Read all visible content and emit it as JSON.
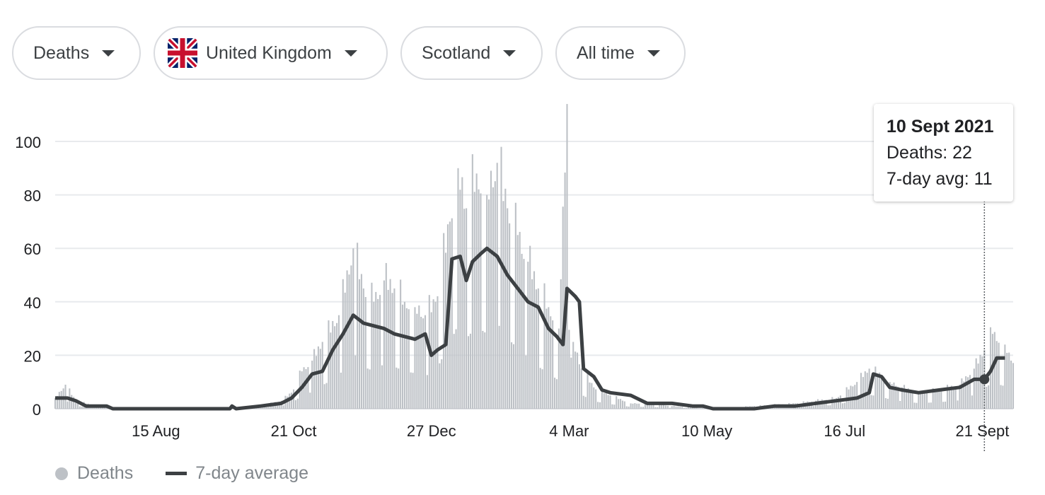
{
  "filters": {
    "metric": "Deaths",
    "country": "United Kingdom",
    "region": "Scotland",
    "range": "All time"
  },
  "tooltip": {
    "date": "10 Sept 2021",
    "deaths": "Deaths: 22",
    "avg": "7-day avg: 11"
  },
  "legend": {
    "deaths": "Deaths",
    "avg": "7-day average"
  },
  "colors": {
    "bars": "#bdc1c6",
    "line": "#3c4043",
    "grid": "#e8eaed",
    "axis_text": "#202124"
  },
  "chart_data": {
    "type": "bar",
    "title": "",
    "xlabel": "",
    "ylabel": "",
    "ylim": [
      0,
      114
    ],
    "yticks": [
      0,
      20,
      40,
      60,
      80,
      100
    ],
    "xtick_labels": [
      {
        "label": "15 Aug",
        "day": 49
      },
      {
        "label": "21 Oct",
        "day": 116
      },
      {
        "label": "27 Dec",
        "day": 183
      },
      {
        "label": "4 Mar",
        "day": 250
      },
      {
        "label": "10 May",
        "day": 317
      },
      {
        "label": "16 Jul",
        "day": 384
      },
      {
        "label": "21 Sept",
        "day": 451
      }
    ],
    "total_days": 466,
    "highlight_day": 452,
    "series": [
      {
        "name": "Deaths",
        "kind": "bar",
        "key_points": [
          [
            0,
            4
          ],
          [
            5,
            9
          ],
          [
            10,
            3
          ],
          [
            20,
            1
          ],
          [
            30,
            0
          ],
          [
            90,
            0
          ],
          [
            100,
            1
          ],
          [
            110,
            3
          ],
          [
            115,
            6
          ],
          [
            120,
            14
          ],
          [
            125,
            18
          ],
          [
            130,
            25
          ],
          [
            138,
            35
          ],
          [
            145,
            60
          ],
          [
            150,
            45
          ],
          [
            155,
            40
          ],
          [
            160,
            48
          ],
          [
            165,
            45
          ],
          [
            170,
            40
          ],
          [
            175,
            38
          ],
          [
            180,
            35
          ],
          [
            185,
            40
          ],
          [
            192,
            70
          ],
          [
            196,
            90
          ],
          [
            200,
            75
          ],
          [
            205,
            88
          ],
          [
            210,
            80
          ],
          [
            215,
            92
          ],
          [
            220,
            75
          ],
          [
            225,
            65
          ],
          [
            230,
            55
          ],
          [
            235,
            45
          ],
          [
            240,
            38
          ],
          [
            245,
            30
          ],
          [
            249,
            114
          ],
          [
            252,
            25
          ],
          [
            256,
            15
          ],
          [
            262,
            8
          ],
          [
            270,
            5
          ],
          [
            280,
            2
          ],
          [
            290,
            2
          ],
          [
            300,
            1
          ],
          [
            320,
            0
          ],
          [
            340,
            1
          ],
          [
            360,
            2
          ],
          [
            370,
            3
          ],
          [
            380,
            4
          ],
          [
            390,
            10
          ],
          [
            396,
            15
          ],
          [
            403,
            12
          ],
          [
            406,
            10
          ],
          [
            412,
            8
          ],
          [
            420,
            6
          ],
          [
            430,
            7
          ],
          [
            440,
            9
          ],
          [
            447,
            15
          ],
          [
            452,
            22
          ],
          [
            456,
            28
          ],
          [
            462,
            24
          ],
          [
            465,
            18
          ]
        ]
      },
      {
        "name": "7-day average",
        "kind": "line",
        "points": [
          [
            0,
            4
          ],
          [
            3,
            4
          ],
          [
            6,
            4
          ],
          [
            10,
            3
          ],
          [
            15,
            1
          ],
          [
            25,
            1
          ],
          [
            28,
            0
          ],
          [
            85,
            0
          ],
          [
            86,
            1
          ],
          [
            88,
            0
          ],
          [
            100,
            1
          ],
          [
            110,
            2
          ],
          [
            115,
            4
          ],
          [
            120,
            8
          ],
          [
            125,
            13
          ],
          [
            130,
            14
          ],
          [
            135,
            22
          ],
          [
            140,
            28
          ],
          [
            145,
            35
          ],
          [
            150,
            32
          ],
          [
            155,
            31
          ],
          [
            160,
            30
          ],
          [
            165,
            28
          ],
          [
            170,
            27
          ],
          [
            175,
            26
          ],
          [
            180,
            28
          ],
          [
            183,
            20
          ],
          [
            186,
            22
          ],
          [
            190,
            24
          ],
          [
            193,
            56
          ],
          [
            197,
            57
          ],
          [
            200,
            48
          ],
          [
            203,
            55
          ],
          [
            207,
            58
          ],
          [
            210,
            60
          ],
          [
            215,
            57
          ],
          [
            220,
            50
          ],
          [
            225,
            45
          ],
          [
            230,
            40
          ],
          [
            235,
            38
          ],
          [
            240,
            30
          ],
          [
            244,
            27
          ],
          [
            247,
            24
          ],
          [
            249,
            45
          ],
          [
            253,
            42
          ],
          [
            255,
            40
          ],
          [
            257,
            15
          ],
          [
            262,
            12
          ],
          [
            266,
            7
          ],
          [
            270,
            6
          ],
          [
            280,
            5
          ],
          [
            288,
            2
          ],
          [
            300,
            2
          ],
          [
            310,
            1
          ],
          [
            315,
            1
          ],
          [
            320,
            0
          ],
          [
            340,
            0
          ],
          [
            350,
            1
          ],
          [
            360,
            1
          ],
          [
            370,
            2
          ],
          [
            380,
            3
          ],
          [
            390,
            4
          ],
          [
            396,
            6
          ],
          [
            398,
            13
          ],
          [
            402,
            12
          ],
          [
            406,
            8
          ],
          [
            412,
            7
          ],
          [
            420,
            6
          ],
          [
            430,
            7
          ],
          [
            440,
            8
          ],
          [
            447,
            11
          ],
          [
            452,
            11
          ],
          [
            455,
            14
          ],
          [
            458,
            19
          ],
          [
            462,
            19
          ]
        ]
      }
    ]
  }
}
